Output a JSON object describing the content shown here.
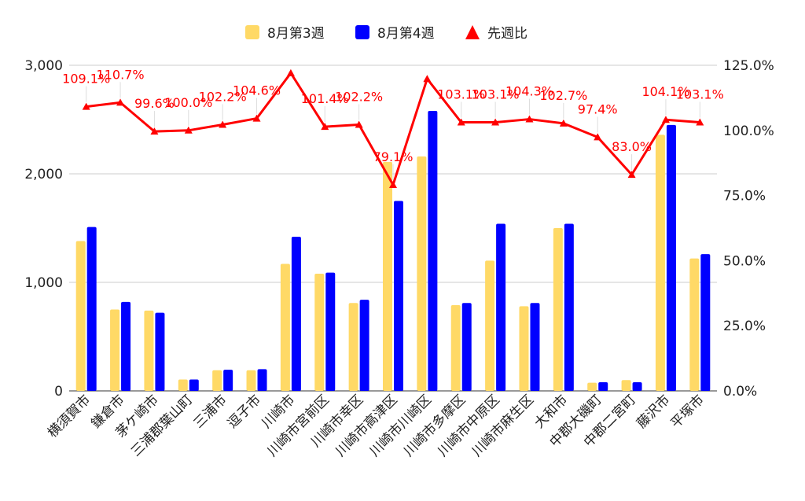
{
  "chart_data": {
    "type": "bar",
    "categories": [
      "横須賀市",
      "鎌倉市",
      "茅ケ崎市",
      "三浦郡葉山町",
      "三浦市",
      "逗子市",
      "川崎市",
      "川崎市宮前区",
      "川崎市幸区",
      "川崎市高津区",
      "川崎市川崎区",
      "川崎市多摩区",
      "川崎市中原区",
      "川崎市麻生区",
      "大和市",
      "中郡大磯町",
      "中郡二宮町",
      "藤沢市",
      "平塚市"
    ],
    "series": [
      {
        "name": "8月第3週",
        "kind": "bar",
        "axis": "left",
        "color": "#FFD966",
        "values": [
          1380,
          750,
          740,
          105,
          190,
          190,
          1170,
          1080,
          810,
          2110,
          2160,
          790,
          1200,
          780,
          1500,
          75,
          100,
          2360,
          1220
        ]
      },
      {
        "name": "8月第4週",
        "kind": "bar",
        "axis": "left",
        "color": "#0000FF",
        "values": [
          1510,
          820,
          720,
          105,
          195,
          200,
          1420,
          1090,
          840,
          1750,
          2580,
          810,
          1540,
          810,
          1540,
          80,
          80,
          2450,
          1260
        ]
      },
      {
        "name": "先週比",
        "kind": "line",
        "axis": "right",
        "color": "#FF0000",
        "values": [
          109.1,
          110.7,
          99.6,
          100.0,
          102.2,
          104.6,
          122.0,
          101.4,
          102.2,
          79.1,
          119.8,
          103.1,
          103.1,
          104.3,
          102.7,
          97.4,
          83.0,
          104.1,
          103.1
        ]
      }
    ],
    "data_labels": [
      "109.1%",
      "110.7%",
      "99.6%",
      "100.0%",
      "102.2%",
      "104.6%",
      "",
      "101.4%",
      "102.2%",
      "79.1%",
      "",
      "103.1%",
      "103.1%",
      "104.3%",
      "102.7%",
      "97.4%",
      "83.0%",
      "104.1%",
      "103.1%"
    ],
    "left_axis": {
      "min": 0,
      "max": 3000,
      "ticks": [
        "0",
        "1,000",
        "2,000",
        "3,000"
      ]
    },
    "right_axis": {
      "min": 0,
      "max": 125,
      "ticks": [
        "0.0%",
        "25.0%",
        "50.0%",
        "75.0%",
        "100.0%",
        "125.0%"
      ]
    },
    "grid": true,
    "legend_position": "top"
  }
}
